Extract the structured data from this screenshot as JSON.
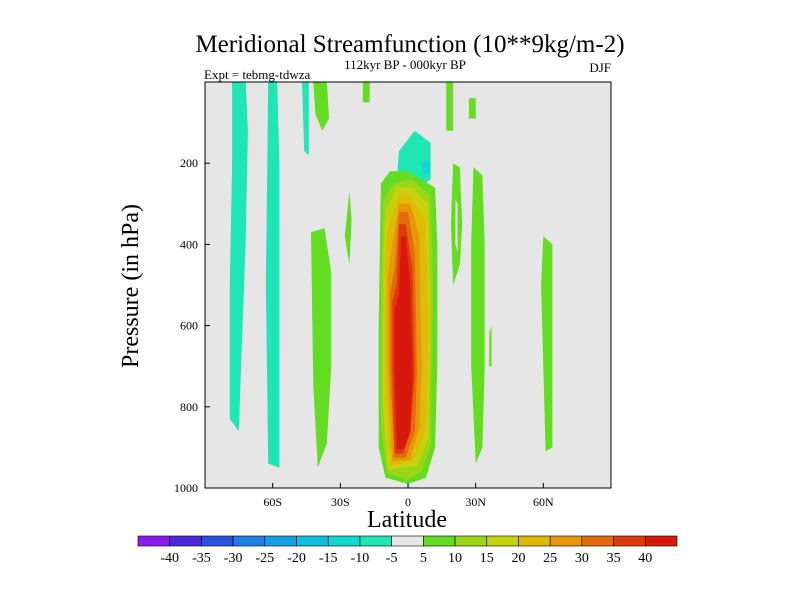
{
  "chart_data": {
    "type": "contour",
    "title": "Meridional Streamfunction (10**9kg/m-2)",
    "subtitle_center": "112kyr BP - 000kyr BP",
    "subtitle_left": "Expt = tebmg-tdwza",
    "subtitle_right": "DJF",
    "xlabel": "Latitude",
    "ylabel": "Pressure (in hPa)",
    "xlim": [
      -90,
      90
    ],
    "ylim": [
      1000,
      0
    ],
    "xticks": [
      {
        "value": -60,
        "label": "60S"
      },
      {
        "value": -30,
        "label": "30S"
      },
      {
        "value": 0,
        "label": "0"
      },
      {
        "value": 30,
        "label": "30N"
      },
      {
        "value": 60,
        "label": "60N"
      }
    ],
    "yticks": [
      {
        "value": 200,
        "label": "200"
      },
      {
        "value": 400,
        "label": "400"
      },
      {
        "value": 600,
        "label": "600"
      },
      {
        "value": 800,
        "label": "800"
      },
      {
        "value": 1000,
        "label": "1000"
      }
    ],
    "background_color": "#e6e6e6",
    "colorbar": {
      "levels": [
        -40,
        -35,
        -30,
        -25,
        -20,
        -15,
        -10,
        -5,
        5,
        10,
        15,
        20,
        25,
        30,
        35,
        40
      ],
      "labels": [
        "-40",
        "-35",
        "-30",
        "-25",
        "-20",
        "-15",
        "-10",
        "-5",
        "5",
        "10",
        "15",
        "20",
        "25",
        "30",
        "35",
        "40"
      ],
      "colors": [
        "#8a1cf0",
        "#4a2adc",
        "#2a52e0",
        "#1e7ee6",
        "#14a0e6",
        "#10bee0",
        "#12d6d0",
        "#1ee6b4",
        "#e6e6e6",
        "#64dc22",
        "#9ad616",
        "#c6d30c",
        "#dfbb08",
        "#e8960a",
        "#e46a0c",
        "#e03a0c",
        "#d8180c"
      ]
    },
    "regions": [
      {
        "value": -10,
        "points": [
          [
            -78,
            0
          ],
          [
            -72,
            0
          ],
          [
            -71,
            120
          ],
          [
            -72,
            400
          ],
          [
            -74,
            700
          ],
          [
            -75,
            860
          ],
          [
            -79,
            830
          ],
          [
            -79,
            500
          ],
          [
            -78,
            200
          ]
        ]
      },
      {
        "value": -10,
        "points": [
          [
            -62,
            0
          ],
          [
            -58,
            0
          ],
          [
            -57,
            200
          ],
          [
            -57,
            600
          ],
          [
            -57,
            950
          ],
          [
            -62,
            940
          ],
          [
            -63,
            500
          ]
        ]
      },
      {
        "value": -10,
        "points": [
          [
            -47,
            0
          ],
          [
            -44,
            0
          ],
          [
            -44,
            180
          ],
          [
            -46,
            170
          ]
        ]
      },
      {
        "value": 5,
        "points": [
          [
            -42,
            0
          ],
          [
            -36,
            0
          ],
          [
            -35,
            90
          ],
          [
            -38,
            120
          ],
          [
            -41,
            80
          ]
        ]
      },
      {
        "value": 5,
        "points": [
          [
            -20,
            0
          ],
          [
            -17,
            0
          ],
          [
            -17,
            50
          ],
          [
            -20,
            50
          ]
        ]
      },
      {
        "value": 5,
        "points": [
          [
            -26,
            270
          ],
          [
            -25,
            340
          ],
          [
            -26,
            450
          ],
          [
            -28,
            380
          ]
        ]
      },
      {
        "value": 5,
        "points": [
          [
            -43,
            370
          ],
          [
            -37,
            360
          ],
          [
            -34,
            470
          ],
          [
            -34,
            700
          ],
          [
            -36,
            890
          ],
          [
            -40,
            950
          ],
          [
            -42,
            750
          ]
        ]
      },
      {
        "value": -5,
        "points": [
          [
            -7,
            160
          ],
          [
            -5,
            100
          ],
          [
            2,
            70
          ],
          [
            10,
            70
          ],
          [
            14,
            130
          ],
          [
            16,
            260
          ],
          [
            9,
            300
          ],
          [
            -3,
            300
          ],
          [
            -8,
            240
          ]
        ]
      },
      {
        "value": -10,
        "points": [
          [
            -4,
            170
          ],
          [
            3,
            120
          ],
          [
            10,
            150
          ],
          [
            10,
            240
          ],
          [
            2,
            270
          ],
          [
            -5,
            240
          ]
        ]
      },
      {
        "value": -15,
        "points": [
          [
            6,
            200
          ],
          [
            9,
            190
          ],
          [
            10,
            220
          ],
          [
            7,
            230
          ]
        ]
      },
      {
        "value": 5,
        "points": [
          [
            17,
            0
          ],
          [
            20,
            0
          ],
          [
            20,
            120
          ],
          [
            17,
            120
          ]
        ]
      },
      {
        "value": 5,
        "points": [
          [
            27,
            40
          ],
          [
            30,
            40
          ],
          [
            30,
            90
          ],
          [
            27,
            90
          ]
        ]
      },
      {
        "value": 5,
        "points": [
          [
            20,
            200
          ],
          [
            23,
            210
          ],
          [
            24,
            350
          ],
          [
            23,
            450
          ],
          [
            20,
            500
          ],
          [
            19,
            350
          ]
        ]
      },
      {
        "value": -5,
        "points": [
          [
            21,
            290
          ],
          [
            22,
            300
          ],
          [
            22,
            420
          ],
          [
            21,
            400
          ]
        ]
      },
      {
        "value": 5,
        "points": [
          [
            29,
            210
          ],
          [
            33,
            230
          ],
          [
            34,
            400
          ],
          [
            34,
            700
          ],
          [
            33,
            900
          ],
          [
            30,
            940
          ],
          [
            28,
            700
          ],
          [
            28,
            400
          ]
        ]
      },
      {
        "value": 5,
        "points": [
          [
            36,
            620
          ],
          [
            37,
            600
          ],
          [
            37,
            700
          ],
          [
            36,
            700
          ]
        ]
      },
      {
        "value": -5,
        "points": [
          [
            42,
            0
          ],
          [
            45,
            0
          ],
          [
            44,
            80
          ],
          [
            42,
            70
          ]
        ]
      },
      {
        "value": 5,
        "points": [
          [
            60,
            380
          ],
          [
            64,
            400
          ],
          [
            64,
            600
          ],
          [
            64,
            900
          ],
          [
            61,
            910
          ],
          [
            60,
            700
          ],
          [
            59,
            500
          ]
        ]
      },
      {
        "value": 5,
        "points": [
          [
            -12,
            250
          ],
          [
            -8,
            220
          ],
          [
            0,
            220
          ],
          [
            12,
            260
          ],
          [
            13,
            400
          ],
          [
            13,
            700
          ],
          [
            12,
            900
          ],
          [
            8,
            975
          ],
          [
            0,
            990
          ],
          [
            -10,
            975
          ],
          [
            -13,
            900
          ],
          [
            -13,
            600
          ]
        ]
      },
      {
        "value": 10,
        "points": [
          [
            -11,
            290
          ],
          [
            -6,
            250
          ],
          [
            2,
            240
          ],
          [
            10,
            280
          ],
          [
            11,
            500
          ],
          [
            10,
            900
          ],
          [
            6,
            960
          ],
          [
            0,
            980
          ],
          [
            -9,
            965
          ],
          [
            -12,
            850
          ],
          [
            -12,
            500
          ]
        ]
      },
      {
        "value": 15,
        "points": [
          [
            -10,
            320
          ],
          [
            -5,
            260
          ],
          [
            2,
            260
          ],
          [
            9,
            300
          ],
          [
            10,
            600
          ],
          [
            9,
            880
          ],
          [
            4,
            945
          ],
          [
            -9,
            955
          ],
          [
            -11,
            800
          ],
          [
            -11,
            450
          ]
        ]
      },
      {
        "value": 20,
        "points": [
          [
            -9,
            360
          ],
          [
            -4,
            280
          ],
          [
            1,
            280
          ],
          [
            8,
            340
          ],
          [
            9,
            650
          ],
          [
            8,
            860
          ],
          [
            2,
            935
          ],
          [
            -8,
            945
          ],
          [
            -10,
            750
          ],
          [
            -10,
            430
          ]
        ]
      },
      {
        "value": 25,
        "points": [
          [
            -7,
            400
          ],
          [
            -4,
            300
          ],
          [
            1,
            300
          ],
          [
            5,
            380
          ],
          [
            6,
            700
          ],
          [
            5,
            850
          ],
          [
            1,
            930
          ],
          [
            -7,
            935
          ],
          [
            -9,
            700
          ],
          [
            -9,
            480
          ]
        ]
      },
      {
        "value": 30,
        "points": [
          [
            -6,
            460
          ],
          [
            -4,
            320
          ],
          [
            0,
            320
          ],
          [
            3,
            420
          ],
          [
            4,
            720
          ],
          [
            3,
            860
          ],
          [
            -1,
            925
          ],
          [
            -6,
            925
          ],
          [
            -8,
            700
          ],
          [
            -8,
            520
          ]
        ]
      },
      {
        "value": 35,
        "points": [
          [
            -5,
            500
          ],
          [
            -4,
            350
          ],
          [
            -1,
            350
          ],
          [
            2,
            460
          ],
          [
            3,
            720
          ],
          [
            1,
            860
          ],
          [
            -2,
            915
          ],
          [
            -6,
            915
          ],
          [
            -7,
            700
          ],
          [
            -7,
            540
          ]
        ]
      },
      {
        "value": 40,
        "points": [
          [
            -4,
            520
          ],
          [
            -3,
            380
          ],
          [
            -1,
            380
          ],
          [
            1,
            500
          ],
          [
            2,
            720
          ],
          [
            1,
            860
          ],
          [
            -2,
            905
          ],
          [
            -5,
            905
          ],
          [
            -6,
            700
          ],
          [
            -6,
            560
          ]
        ]
      }
    ]
  }
}
